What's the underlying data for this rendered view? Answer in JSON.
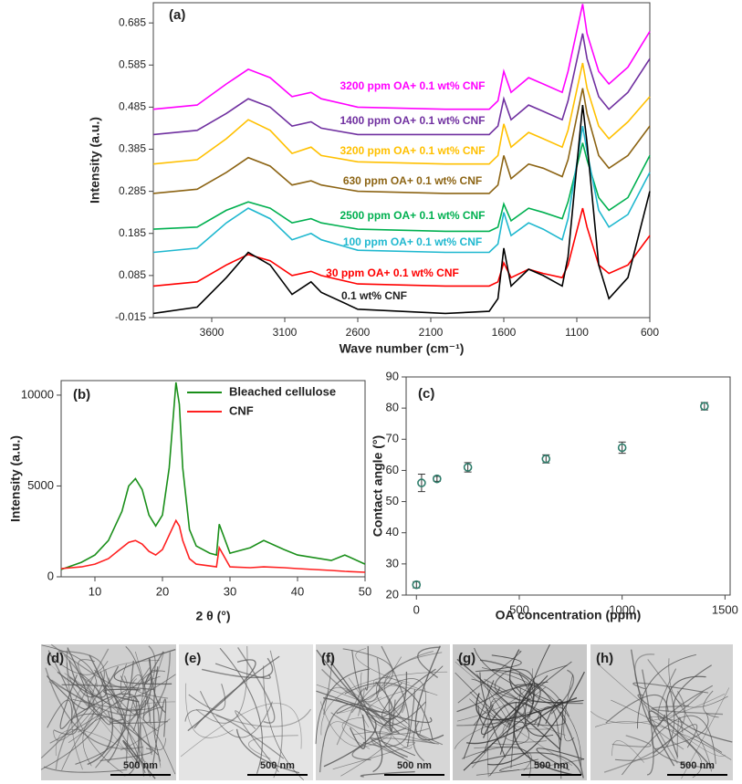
{
  "chart_data": [
    {
      "type": "line",
      "panel_label": "(a)",
      "x_label": "Wave number (cm⁻¹)",
      "y_label": "Intensity (a.u.)",
      "x": [
        4000,
        3700,
        3500,
        3350,
        3200,
        3050,
        2920,
        2850,
        2600,
        2000,
        1700,
        1640,
        1600,
        1550,
        1430,
        1330,
        1200,
        1160,
        1060,
        1030,
        950,
        880,
        750,
        600
      ],
      "xlim": [
        4000,
        600
      ],
      "xticks": [
        3600,
        3100,
        2600,
        2100,
        1600,
        1100,
        600
      ],
      "ylim": [
        -0.015,
        0.733
      ],
      "yticks": [
        -0.015,
        0.085,
        0.185,
        0.285,
        0.385,
        0.485,
        0.585,
        0.685
      ],
      "series": [
        {
          "name": "3200 ppm OA+ 0.1 wt% CNF",
          "color": "#ff00ff",
          "values": [
            0.48,
            0.49,
            0.54,
            0.575,
            0.555,
            0.51,
            0.52,
            0.505,
            0.485,
            0.48,
            0.48,
            0.5,
            0.57,
            0.52,
            0.555,
            0.54,
            0.52,
            0.57,
            0.73,
            0.66,
            0.57,
            0.54,
            0.58,
            0.665
          ]
        },
        {
          "name": "1400 ppm OA+ 0.1 wt% CNF",
          "color": "#7030a0",
          "values": [
            0.42,
            0.43,
            0.47,
            0.505,
            0.485,
            0.44,
            0.45,
            0.435,
            0.42,
            0.42,
            0.42,
            0.44,
            0.505,
            0.455,
            0.49,
            0.475,
            0.455,
            0.5,
            0.66,
            0.6,
            0.51,
            0.48,
            0.52,
            0.6
          ]
        },
        {
          "name": "3200 ppm OA+ 0.1 wt% CNF",
          "color": "#ffc000",
          "values": [
            0.35,
            0.36,
            0.41,
            0.455,
            0.43,
            0.375,
            0.39,
            0.37,
            0.355,
            0.35,
            0.35,
            0.37,
            0.445,
            0.39,
            0.425,
            0.41,
            0.39,
            0.43,
            0.59,
            0.53,
            0.44,
            0.41,
            0.45,
            0.51
          ]
        },
        {
          "name": "630 ppm OA+ 0.1 wt% CNF",
          "color": "#8c6414",
          "values": [
            0.28,
            0.29,
            0.33,
            0.365,
            0.345,
            0.3,
            0.31,
            0.3,
            0.285,
            0.28,
            0.28,
            0.3,
            0.37,
            0.315,
            0.35,
            0.34,
            0.32,
            0.36,
            0.53,
            0.47,
            0.37,
            0.34,
            0.37,
            0.44
          ]
        },
        {
          "name": "2500 ppm OA+ 0.1 wt% CNF",
          "color": "#00b050",
          "values": [
            0.195,
            0.2,
            0.24,
            0.26,
            0.245,
            0.21,
            0.22,
            0.21,
            0.195,
            0.19,
            0.19,
            0.2,
            0.255,
            0.215,
            0.245,
            0.235,
            0.22,
            0.26,
            0.4,
            0.36,
            0.27,
            0.24,
            0.27,
            0.37
          ]
        },
        {
          "name": "100 ppm OA+ 0.1 wt% CNF",
          "color": "#1fb8cf",
          "values": [
            0.14,
            0.15,
            0.21,
            0.245,
            0.22,
            0.17,
            0.185,
            0.17,
            0.145,
            0.14,
            0.14,
            0.16,
            0.235,
            0.18,
            0.21,
            0.195,
            0.17,
            0.22,
            0.44,
            0.38,
            0.24,
            0.2,
            0.23,
            0.33
          ]
        },
        {
          "name": "30 ppm OA+ 0.1 wt% CNF",
          "color": "#ff0000",
          "values": [
            0.06,
            0.07,
            0.11,
            0.135,
            0.12,
            0.085,
            0.095,
            0.085,
            0.065,
            0.06,
            0.06,
            0.07,
            0.115,
            0.08,
            0.1,
            0.09,
            0.08,
            0.11,
            0.245,
            0.2,
            0.11,
            0.09,
            0.11,
            0.18
          ]
        },
        {
          "name": "0.1 wt% CNF",
          "color": "#000000",
          "values": [
            -0.005,
            0.01,
            0.08,
            0.14,
            0.11,
            0.04,
            0.07,
            0.045,
            0.005,
            -0.005,
            0.0,
            0.03,
            0.15,
            0.06,
            0.1,
            0.085,
            0.06,
            0.13,
            0.49,
            0.4,
            0.11,
            0.03,
            0.08,
            0.285
          ]
        }
      ]
    },
    {
      "type": "line",
      "panel_label": "(b)",
      "x_label": "2 θ (°)",
      "y_label": "Intensity (a.u.)",
      "legend": "upper center",
      "x": [
        5,
        8,
        10,
        12,
        14,
        15,
        16,
        17,
        18,
        19,
        20,
        21,
        22,
        22.5,
        23,
        24,
        25,
        27,
        28,
        28.4,
        30,
        33,
        35,
        38,
        40,
        45,
        47,
        50
      ],
      "xlim": [
        5,
        50
      ],
      "xticks": [
        10,
        20,
        30,
        40,
        50
      ],
      "ylim": [
        0,
        10800
      ],
      "yticks": [
        0,
        5000,
        10000
      ],
      "series": [
        {
          "name": "Bleached cellulose",
          "color": "#1a8f1a",
          "values": [
            400,
            800,
            1200,
            2000,
            3600,
            5000,
            5400,
            4800,
            3400,
            2800,
            3400,
            6000,
            10700,
            9500,
            6000,
            2600,
            1700,
            1300,
            1200,
            2900,
            1300,
            1600,
            2000,
            1500,
            1200,
            900,
            1200,
            700
          ]
        },
        {
          "name": "CNF",
          "color": "#ff2020",
          "values": [
            450,
            550,
            700,
            1000,
            1600,
            1900,
            2000,
            1800,
            1400,
            1200,
            1500,
            2300,
            3100,
            2800,
            2000,
            1000,
            700,
            600,
            550,
            1600,
            550,
            500,
            550,
            500,
            450,
            350,
            300,
            250
          ]
        }
      ]
    },
    {
      "type": "scatter",
      "panel_label": "(c)",
      "x_label": "OA concentration (ppm)",
      "y_label": "Contact angle (°)",
      "color": "#2e7d6b",
      "x": [
        0,
        25,
        100,
        250,
        630,
        1000,
        1400
      ],
      "y": [
        23.3,
        56,
        57.3,
        61,
        63.7,
        67.3,
        80.6
      ],
      "errors": [
        1,
        2.8,
        0.8,
        1.5,
        1.3,
        1.8,
        1.2
      ],
      "xlim": [
        -50,
        1525
      ],
      "xticks": [
        0,
        500,
        1000,
        1500
      ],
      "ylim": [
        20,
        90
      ],
      "yticks": [
        20,
        30,
        40,
        50,
        60,
        70,
        80,
        90
      ]
    }
  ],
  "micrographs": [
    {
      "label": "(d)",
      "scale": "500 nm"
    },
    {
      "label": "(e)",
      "scale": "500 nm"
    },
    {
      "label": "(f)",
      "scale": "500 nm"
    },
    {
      "label": "(g)",
      "scale": "500 nm"
    },
    {
      "label": "(h)",
      "scale": "500 nm"
    }
  ]
}
